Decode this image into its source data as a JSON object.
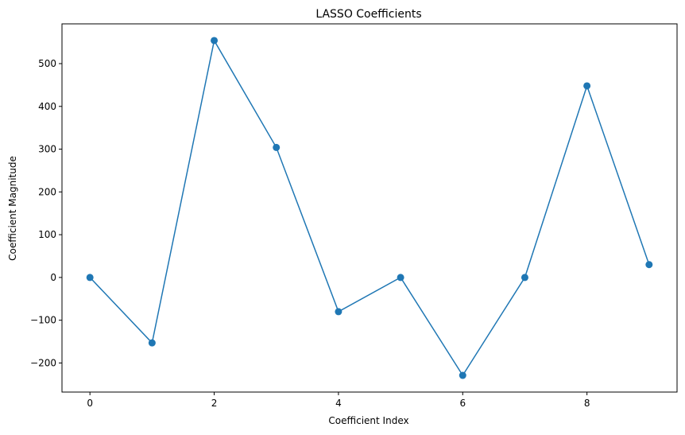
{
  "chart_data": {
    "type": "line",
    "title": "LASSO Coefficients",
    "x_label": "Coefficient Index",
    "y_label": "Coefficient Magnitude",
    "x": [
      0,
      1,
      2,
      3,
      4,
      5,
      6,
      7,
      8,
      9
    ],
    "series": [
      {
        "color": "#1f77b4",
        "values": [
          0,
          -153,
          554,
          304,
          -80,
          0,
          -229,
          0,
          448,
          30
        ]
      }
    ],
    "markers": true,
    "xlim": [
      -0.45,
      9.45
    ],
    "xticks": [
      0,
      2,
      4,
      6,
      8
    ],
    "ylim": [
      -268,
      593
    ],
    "yticks": [
      {
        "value": -200,
        "label": "−200"
      },
      {
        "value": -100,
        "label": "−100"
      },
      0,
      100,
      200,
      300,
      400,
      500
    ]
  }
}
